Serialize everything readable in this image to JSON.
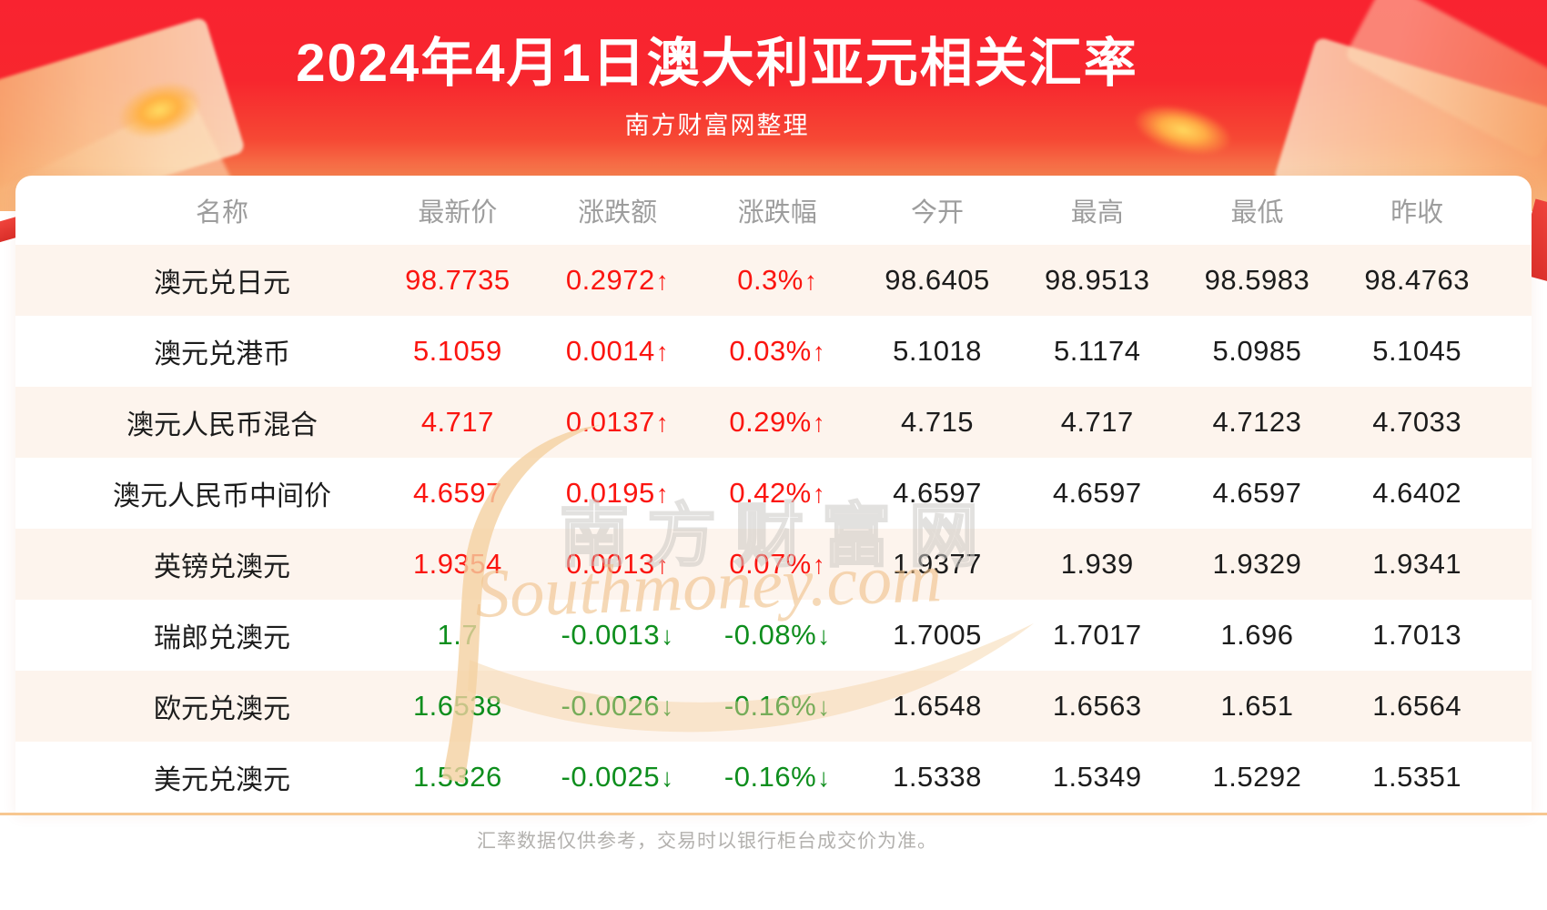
{
  "banner": {
    "title": "2024年4月1日澳大利亚元相关汇率",
    "subtitle": "南方财富网整理"
  },
  "table": {
    "columns": [
      "名称",
      "最新价",
      "涨跌额",
      "涨跌幅",
      "今开",
      "最高",
      "最低",
      "昨收"
    ],
    "rows": [
      {
        "name": "澳元兑日元",
        "latest": "98.7735",
        "change": "0.2972",
        "change_pct": "0.3%",
        "direction": "up",
        "open": "98.6405",
        "high": "98.9513",
        "low": "98.5983",
        "prev_close": "98.4763"
      },
      {
        "name": "澳元兑港币",
        "latest": "5.1059",
        "change": "0.0014",
        "change_pct": "0.03%",
        "direction": "up",
        "open": "5.1018",
        "high": "5.1174",
        "low": "5.0985",
        "prev_close": "5.1045"
      },
      {
        "name": "澳元人民币混合",
        "latest": "4.717",
        "change": "0.0137",
        "change_pct": "0.29%",
        "direction": "up",
        "open": "4.715",
        "high": "4.717",
        "low": "4.7123",
        "prev_close": "4.7033"
      },
      {
        "name": "澳元人民币中间价",
        "latest": "4.6597",
        "change": "0.0195",
        "change_pct": "0.42%",
        "direction": "up",
        "open": "4.6597",
        "high": "4.6597",
        "low": "4.6597",
        "prev_close": "4.6402"
      },
      {
        "name": "英镑兑澳元",
        "latest": "1.9354",
        "change": "0.0013",
        "change_pct": "0.07%",
        "direction": "up",
        "open": "1.9377",
        "high": "1.939",
        "low": "1.9329",
        "prev_close": "1.9341"
      },
      {
        "name": "瑞郎兑澳元",
        "latest": "1.7",
        "change": "-0.0013",
        "change_pct": "-0.08%",
        "direction": "down",
        "open": "1.7005",
        "high": "1.7017",
        "low": "1.696",
        "prev_close": "1.7013"
      },
      {
        "name": "欧元兑澳元",
        "latest": "1.6538",
        "change": "-0.0026",
        "change_pct": "-0.16%",
        "direction": "down",
        "open": "1.6548",
        "high": "1.6563",
        "low": "1.651",
        "prev_close": "1.6564"
      },
      {
        "name": "美元兑澳元",
        "latest": "1.5326",
        "change": "-0.0025",
        "change_pct": "-0.16%",
        "direction": "down",
        "open": "1.5338",
        "high": "1.5349",
        "low": "1.5292",
        "prev_close": "1.5351"
      }
    ]
  },
  "glyphs": {
    "arrow_up": "↑",
    "arrow_down": "↓"
  },
  "watermark": {
    "cn": "南方财富网",
    "en": "Southmoney.com"
  },
  "footer": {
    "note": "汇率数据仅供参考，交易时以银行柜台成交价为准。"
  },
  "colors": {
    "up": "#fb1510",
    "down": "#0e8e1d",
    "banner_red": "#f92330",
    "stripe": "#fdf4ed",
    "divider": "#f7c790"
  }
}
